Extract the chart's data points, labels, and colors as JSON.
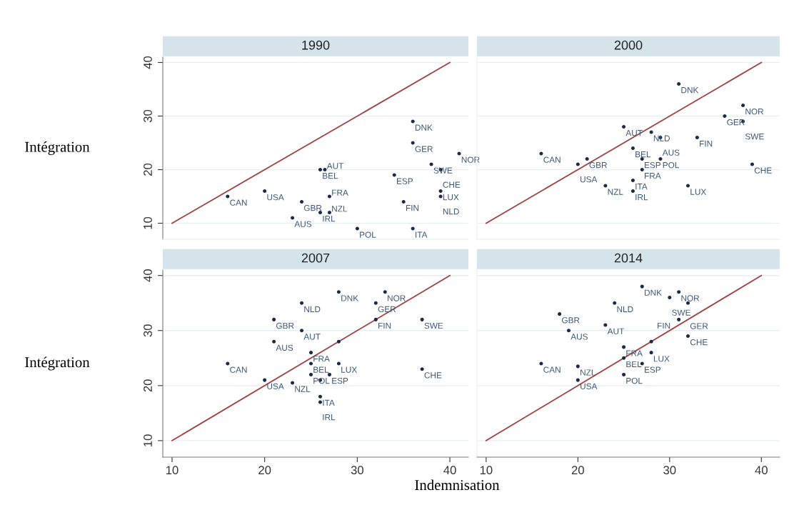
{
  "chart_data": [
    {
      "type": "scatter",
      "title": "1990",
      "ylabel": "Intégration",
      "xlim": [
        9,
        42
      ],
      "ylim": [
        7,
        41
      ],
      "xticks": [
        10,
        20,
        30,
        40
      ],
      "yticks": [
        10,
        20,
        30,
        40
      ],
      "grid": "y",
      "tick_labels": "y",
      "series": [
        {
          "color": "#1b2a4a",
          "marker": "circle",
          "x": [
            16,
            20,
            26,
            26.5,
            24,
            26,
            27,
            27,
            23,
            30,
            36,
            35,
            34,
            36,
            36,
            38,
            39,
            39,
            39,
            41
          ],
          "values": [
            15,
            16,
            20,
            20,
            14,
            12,
            12,
            15,
            11,
            9,
            9,
            14,
            19,
            29,
            25,
            21,
            20,
            16,
            15,
            23
          ]
        },
        {
          "type": "line",
          "color": "#a04040",
          "marker": "none",
          "x": [
            10,
            40
          ],
          "values": [
            10,
            40
          ]
        }
      ],
      "annotations": [
        {
          "text": "CAN",
          "x": 16,
          "y": 15
        },
        {
          "text": "USA",
          "x": 20,
          "y": 16
        },
        {
          "text": "BEL",
          "x": 26,
          "y": 20
        },
        {
          "text": "AUT",
          "x": 26.5,
          "y": 20
        },
        {
          "text": "GBR",
          "x": 24,
          "y": 14
        },
        {
          "text": "IRL",
          "x": 26,
          "y": 12
        },
        {
          "text": "NZL",
          "x": 27,
          "y": 12
        },
        {
          "text": "FRA",
          "x": 27,
          "y": 15
        },
        {
          "text": "AUS",
          "x": 23,
          "y": 11
        },
        {
          "text": "POL",
          "x": 30,
          "y": 9
        },
        {
          "text": "ITA",
          "x": 36,
          "y": 9
        },
        {
          "text": "FIN",
          "x": 35,
          "y": 14
        },
        {
          "text": "ESP",
          "x": 34,
          "y": 19
        },
        {
          "text": "DNK",
          "x": 36,
          "y": 29
        },
        {
          "text": "GER",
          "x": 36,
          "y": 25
        },
        {
          "text": "SWE",
          "x": 38,
          "y": 21
        },
        {
          "text": "CHE",
          "x": 39,
          "y": 20
        },
        {
          "text": "LUX",
          "x": 39,
          "y": 16
        },
        {
          "text": "NLD",
          "x": 39,
          "y": 15
        },
        {
          "text": "NOR",
          "x": 41,
          "y": 23
        }
      ]
    },
    {
      "type": "scatter",
      "title": "2000",
      "xlim": [
        9,
        42
      ],
      "ylim": [
        7,
        41
      ],
      "xticks": [
        10,
        20,
        30,
        40
      ],
      "yticks": [
        10,
        20,
        30,
        40
      ],
      "grid": "y",
      "tick_labels": false,
      "series": [
        {
          "color": "#1b2a4a",
          "marker": "circle",
          "x": [
            31,
            38,
            36,
            38,
            25,
            28,
            29,
            33,
            26,
            29,
            27,
            16,
            21,
            20,
            27,
            39,
            26,
            23,
            26,
            32
          ],
          "values": [
            36,
            32,
            30,
            29,
            28,
            27,
            26,
            26,
            24,
            22,
            22,
            23,
            22,
            21,
            20,
            21,
            18,
            17,
            16,
            17
          ]
        },
        {
          "type": "line",
          "color": "#a04040",
          "marker": "none",
          "x": [
            10,
            40
          ],
          "values": [
            10,
            40
          ]
        }
      ],
      "annotations": [
        {
          "text": "DNK",
          "x": 31,
          "y": 36
        },
        {
          "text": "NOR",
          "x": 38,
          "y": 32
        },
        {
          "text": "GER",
          "x": 36,
          "y": 30
        },
        {
          "text": "SWE",
          "x": 38,
          "y": 29
        },
        {
          "text": "AUT",
          "x": 25,
          "y": 28
        },
        {
          "text": "NLD",
          "x": 28,
          "y": 27
        },
        {
          "text": "AUS",
          "x": 29,
          "y": 26
        },
        {
          "text": "FIN",
          "x": 33,
          "y": 26
        },
        {
          "text": "BEL",
          "x": 26,
          "y": 24
        },
        {
          "text": "POL",
          "x": 29,
          "y": 22
        },
        {
          "text": "ESP",
          "x": 27,
          "y": 22
        },
        {
          "text": "CAN",
          "x": 16,
          "y": 23
        },
        {
          "text": "GBR",
          "x": 21,
          "y": 22
        },
        {
          "text": "USA",
          "x": 20,
          "y": 21
        },
        {
          "text": "FRA",
          "x": 27,
          "y": 20
        },
        {
          "text": "CHE",
          "x": 39,
          "y": 21
        },
        {
          "text": "ITA",
          "x": 26,
          "y": 18
        },
        {
          "text": "NZL",
          "x": 23,
          "y": 17
        },
        {
          "text": "IRL",
          "x": 26,
          "y": 16
        },
        {
          "text": "LUX",
          "x": 32,
          "y": 17
        }
      ]
    },
    {
      "type": "scatter",
      "title": "2007",
      "ylabel": "Intégration",
      "xlim": [
        9,
        42
      ],
      "ylim": [
        7,
        41
      ],
      "xticks": [
        10,
        20,
        30,
        40
      ],
      "yticks": [
        10,
        20,
        30,
        40
      ],
      "grid": "y",
      "series": [
        {
          "color": "#1b2a4a",
          "marker": "circle",
          "x": [
            28,
            33,
            24,
            32,
            21,
            32,
            37,
            24,
            21,
            28,
            25,
            16,
            25,
            28,
            37,
            25,
            27,
            26,
            20,
            23,
            26,
            26
          ],
          "values": [
            37,
            37,
            35,
            35,
            32,
            32,
            32,
            30,
            28,
            28,
            26,
            24,
            24,
            24,
            23,
            22,
            22,
            21,
            21,
            20.5,
            18,
            17
          ]
        },
        {
          "type": "line",
          "color": "#a04040",
          "marker": "none",
          "x": [
            10,
            40
          ],
          "values": [
            10,
            40
          ]
        }
      ],
      "annotations": [
        {
          "text": "DNK",
          "x": 28,
          "y": 37
        },
        {
          "text": "NOR",
          "x": 33,
          "y": 37
        },
        {
          "text": "NLD",
          "x": 24,
          "y": 35
        },
        {
          "text": "GER",
          "x": 32,
          "y": 35
        },
        {
          "text": "GBR",
          "x": 21,
          "y": 32
        },
        {
          "text": "FIN",
          "x": 32,
          "y": 32
        },
        {
          "text": "SWE",
          "x": 37,
          "y": 32
        },
        {
          "text": "AUT",
          "x": 24,
          "y": 30
        },
        {
          "text": "AUS",
          "x": 21,
          "y": 28
        },
        {
          "text": "FRA",
          "x": 25,
          "y": 26
        },
        {
          "text": "CAN",
          "x": 16,
          "y": 24
        },
        {
          "text": "BEL",
          "x": 25,
          "y": 24
        },
        {
          "text": "LUX",
          "x": 28,
          "y": 24
        },
        {
          "text": "CHE",
          "x": 37,
          "y": 23
        },
        {
          "text": "POL",
          "x": 25,
          "y": 22
        },
        {
          "text": "ESP",
          "x": 27,
          "y": 22
        },
        {
          "text": "USA",
          "x": 20,
          "y": 21
        },
        {
          "text": "NZL",
          "x": 23,
          "y": 20.5
        },
        {
          "text": "ITA",
          "x": 26,
          "y": 18
        },
        {
          "text": "IRL",
          "x": 26,
          "y": 17
        }
      ]
    },
    {
      "type": "scatter",
      "title": "2014",
      "xlabel": "Indemnisation",
      "xlim": [
        9,
        42
      ],
      "ylim": [
        7,
        41
      ],
      "xticks": [
        10,
        20,
        30,
        40
      ],
      "yticks": [
        10,
        20,
        30,
        40
      ],
      "grid": "y",
      "tick_labels": "x",
      "series": [
        {
          "color": "#1b2a4a",
          "marker": "circle",
          "x": [
            27,
            31,
            30,
            24,
            32,
            18,
            31,
            23,
            19,
            32,
            28,
            25,
            28,
            25,
            27,
            16,
            20,
            25,
            20
          ],
          "values": [
            38,
            37,
            36,
            35,
            35,
            33,
            32,
            31,
            30,
            29,
            28,
            27,
            26,
            25,
            24,
            24,
            23.5,
            22,
            21
          ]
        },
        {
          "type": "line",
          "color": "#a04040",
          "marker": "none",
          "x": [
            10,
            40
          ],
          "values": [
            10,
            40
          ]
        }
      ],
      "annotations": [
        {
          "text": "DNK",
          "x": 27,
          "y": 38
        },
        {
          "text": "NOR",
          "x": 31,
          "y": 37
        },
        {
          "text": "SWE",
          "x": 30,
          "y": 36
        },
        {
          "text": "NLD",
          "x": 24,
          "y": 35
        },
        {
          "text": "GER",
          "x": 32,
          "y": 35
        },
        {
          "text": "GBR",
          "x": 18,
          "y": 33
        },
        {
          "text": "FIN",
          "x": 31,
          "y": 32
        },
        {
          "text": "AUT",
          "x": 23,
          "y": 31
        },
        {
          "text": "AUS",
          "x": 19,
          "y": 30
        },
        {
          "text": "CHE",
          "x": 32,
          "y": 29
        },
        {
          "text": "FRA",
          "x": 25,
          "y": 27
        },
        {
          "text": "LUX",
          "x": 28,
          "y": 26
        },
        {
          "text": "BEL",
          "x": 25,
          "y": 25
        },
        {
          "text": "ESP",
          "x": 27,
          "y": 24
        },
        {
          "text": "CAN",
          "x": 16,
          "y": 24
        },
        {
          "text": "NZL",
          "x": 20,
          "y": 23.5
        },
        {
          "text": "POL",
          "x": 25,
          "y": 22
        },
        {
          "text": "USA",
          "x": 20,
          "y": 21
        }
      ]
    }
  ]
}
